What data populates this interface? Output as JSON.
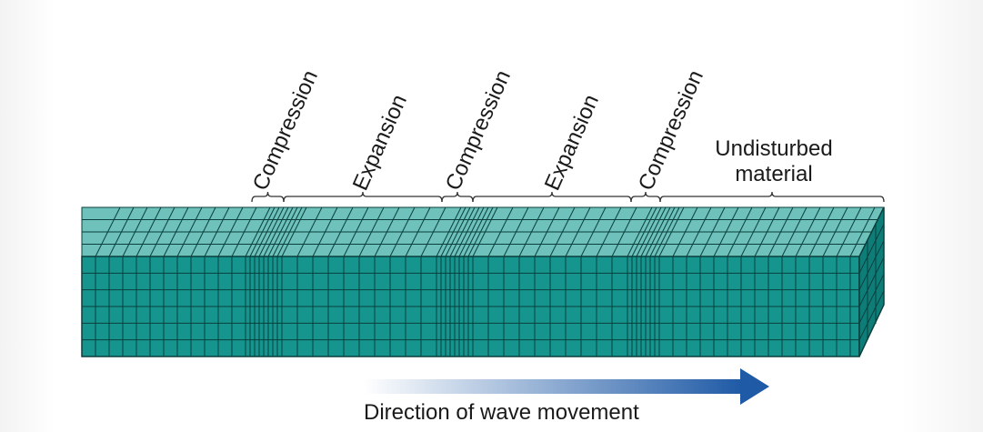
{
  "labels": {
    "compression_1": "Compression",
    "expansion_1": "Expansion",
    "compression_2": "Compression",
    "expansion_2": "Expansion",
    "compression_3": "Compression",
    "undisturbed_line1": "Undisturbed",
    "undisturbed_line2": "material"
  },
  "caption": "Direction of wave movement",
  "colors": {
    "front_face": "#15958d",
    "top_face": "#6ec2bb",
    "side_face": "#0f7d77",
    "grid_line": "#0a3f3d",
    "bracket": "#333333",
    "arrow_start": "#ffffff",
    "arrow_end": "#1f5aa6"
  }
}
